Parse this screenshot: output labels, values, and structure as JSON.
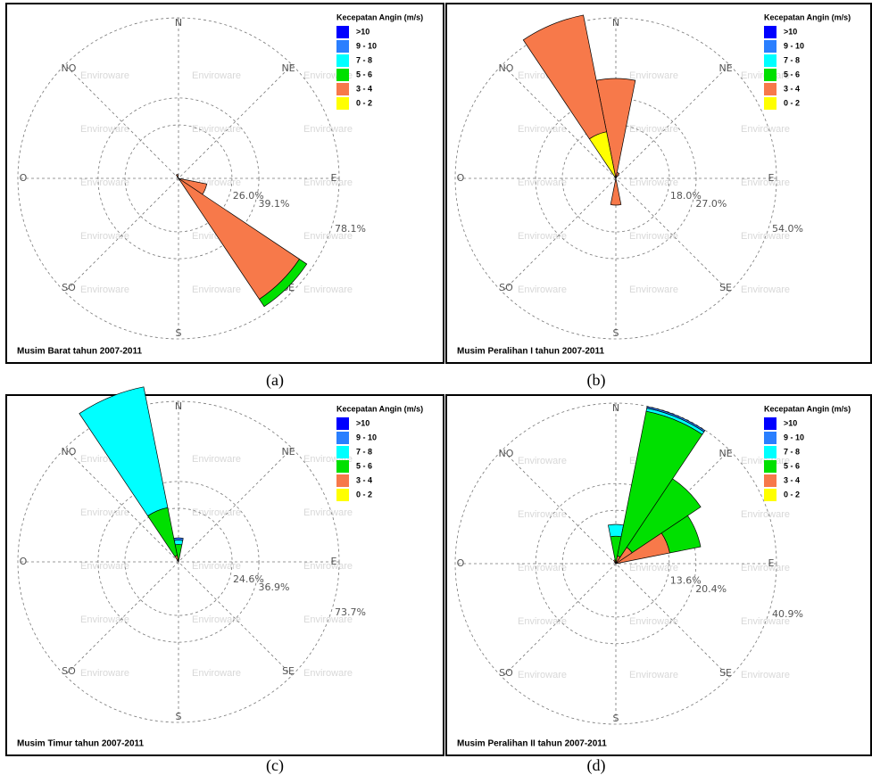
{
  "chart_data": [
    {
      "type": "windrose",
      "title": "Musim Barat tahun 2007-2011",
      "caption": "(a)",
      "legend_title": "Kecepatan Angin (m/s)",
      "watermark": "Enviroware",
      "categories": [
        "N",
        null,
        "NE",
        null,
        "E",
        null,
        "SE",
        null,
        "S",
        null,
        "SO",
        null,
        "O",
        null,
        "NO",
        null
      ],
      "rlim": [
        0,
        78.1
      ],
      "rticks": [
        {
          "value": 26.0,
          "label": "26.0%"
        },
        {
          "value": 39.1,
          "label": "39.1%"
        },
        {
          "value": 78.1,
          "label": "78.1%"
        }
      ],
      "series": [
        {
          "name": ">10",
          "color": "#0000ff",
          "values": [
            0,
            0,
            0,
            0,
            0,
            0,
            0,
            0,
            0,
            0,
            0,
            0,
            0,
            0,
            0,
            0
          ]
        },
        {
          "name": "9 - 10",
          "color": "#2a7fff",
          "values": [
            0,
            0,
            0,
            0,
            0,
            0,
            0,
            0,
            0,
            0,
            0,
            0,
            0,
            0,
            0,
            0
          ]
        },
        {
          "name": "7 - 8",
          "color": "#00ffff",
          "values": [
            0,
            0,
            0,
            0,
            0,
            0,
            0,
            0,
            0,
            0,
            0,
            0,
            0,
            0,
            0,
            0
          ]
        },
        {
          "name": "5 - 6",
          "color": "#00e000",
          "values": [
            0,
            0,
            0,
            0,
            0,
            0,
            4.3,
            0,
            0,
            0,
            0,
            0,
            0,
            0,
            0,
            0
          ]
        },
        {
          "name": "3 - 4",
          "color": "#f7794a",
          "values": [
            0,
            0,
            0,
            0,
            0,
            14,
            70.7,
            0,
            0,
            0,
            0,
            0,
            0,
            0,
            0,
            2
          ]
        },
        {
          "name": "0 - 2",
          "color": "#ffff00",
          "values": [
            0,
            0,
            0,
            0,
            0,
            0,
            0,
            0,
            0,
            0,
            0,
            0,
            0,
            0,
            0,
            0
          ]
        }
      ]
    },
    {
      "type": "windrose",
      "title": "Musim Peralihan I tahun 2007-2011",
      "caption": "(b)",
      "legend_title": "Kecepatan Angin (m/s)",
      "watermark": "Enviroware",
      "categories": [
        "N",
        null,
        "NE",
        null,
        "E",
        null,
        "SE",
        null,
        "S",
        null,
        "SO",
        null,
        "O",
        null,
        "NO",
        null
      ],
      "rlim": [
        0,
        54.0
      ],
      "rticks": [
        {
          "value": 18.0,
          "label": "18.0%"
        },
        {
          "value": 27.0,
          "label": "27.0%"
        },
        {
          "value": 54.0,
          "label": "54.0%"
        }
      ],
      "series": [
        {
          "name": ">10",
          "color": "#0000ff",
          "values": [
            0,
            0,
            0,
            0,
            0,
            0,
            0,
            0,
            0,
            0,
            0,
            0,
            0,
            0,
            0,
            0
          ]
        },
        {
          "name": "9 - 10",
          "color": "#2a7fff",
          "values": [
            0,
            0,
            0,
            0,
            0,
            0,
            0,
            0,
            0,
            0,
            0,
            0,
            0,
            0,
            0,
            0
          ]
        },
        {
          "name": "7 - 8",
          "color": "#00ffff",
          "values": [
            0,
            0,
            0,
            0,
            0,
            0,
            0,
            0,
            0,
            0,
            0,
            0,
            0,
            0,
            0,
            0
          ]
        },
        {
          "name": "5 - 6",
          "color": "#00e000",
          "values": [
            0,
            0,
            0,
            0,
            0,
            0,
            0,
            0,
            0,
            0,
            0,
            0,
            0,
            0,
            0,
            0
          ]
        },
        {
          "name": "3 - 4",
          "color": "#f7794a",
          "values": [
            33.6,
            2,
            0,
            0,
            0,
            0,
            0,
            0,
            9,
            0,
            0,
            0,
            0,
            0,
            0,
            40
          ]
        },
        {
          "name": "0 - 2",
          "color": "#ffff00",
          "values": [
            0,
            0,
            0,
            0,
            0,
            0,
            0,
            0,
            0,
            0,
            0,
            0,
            0,
            0,
            0,
            16
          ]
        }
      ]
    },
    {
      "type": "windrose",
      "title": "Musim Timur tahun 2007-2011",
      "caption": "(c)",
      "legend_title": "Kecepatan Angin (m/s)",
      "watermark": "Enviroware",
      "categories": [
        "N",
        null,
        "NE",
        null,
        "E",
        null,
        "SE",
        null,
        "S",
        null,
        "SO",
        null,
        "O",
        null,
        "NO",
        null
      ],
      "rlim": [
        0,
        73.7
      ],
      "rticks": [
        {
          "value": 24.6,
          "label": "24.6%"
        },
        {
          "value": 36.9,
          "label": "36.9%"
        },
        {
          "value": 73.7,
          "label": "73.7%"
        }
      ],
      "series": [
        {
          "name": ">10",
          "color": "#0000ff",
          "values": [
            0,
            0,
            0,
            0,
            0,
            0,
            0,
            0,
            0,
            0,
            0,
            0,
            0,
            0,
            0,
            0
          ]
        },
        {
          "name": "9 - 10",
          "color": "#2a7fff",
          "values": [
            1,
            0,
            0,
            0,
            0,
            0,
            0,
            0,
            0,
            0,
            0,
            0,
            0,
            0,
            0,
            0
          ]
        },
        {
          "name": "7 - 8",
          "color": "#00ffff",
          "values": [
            2,
            0,
            0,
            0,
            0,
            0,
            0,
            0,
            0,
            0,
            0,
            0,
            0,
            0,
            0,
            56.5
          ]
        },
        {
          "name": "5 - 6",
          "color": "#00e000",
          "values": [
            8,
            0,
            0,
            0,
            0,
            0,
            0,
            0,
            0,
            0,
            0,
            0,
            0,
            0,
            0,
            22.4
          ]
        },
        {
          "name": "3 - 4",
          "color": "#f7794a",
          "values": [
            0,
            0,
            0,
            0,
            0,
            0,
            0,
            0,
            0,
            0,
            0,
            0,
            0,
            0,
            0,
            3
          ]
        },
        {
          "name": "0 - 2",
          "color": "#ffff00",
          "values": [
            0,
            0,
            0,
            0,
            0,
            0,
            0,
            0,
            0,
            0,
            0,
            0,
            0,
            0,
            0,
            0
          ]
        }
      ]
    },
    {
      "type": "windrose",
      "title": "Musim Peralihan II tahun 2007-2011",
      "caption": "(d)",
      "legend_title": "Kecepatan Angin (m/s)",
      "watermark": "Enviroware",
      "categories": [
        "N",
        null,
        "NE",
        null,
        "E",
        null,
        "SE",
        null,
        "S",
        null,
        "SO",
        null,
        "O",
        null,
        "NO",
        null
      ],
      "rlim": [
        0,
        40.9
      ],
      "rticks": [
        {
          "value": 13.6,
          "label": "13.6%"
        },
        {
          "value": 20.4,
          "label": "20.4%"
        },
        {
          "value": 40.9,
          "label": "40.9%"
        }
      ],
      "series": [
        {
          "name": ">10",
          "color": "#0000ff",
          "values": [
            0,
            0,
            0,
            0,
            0,
            0,
            0,
            0,
            0,
            0,
            0,
            0,
            0,
            0,
            0,
            0
          ]
        },
        {
          "name": "9 - 10",
          "color": "#2a7fff",
          "values": [
            0,
            0.4,
            0,
            0,
            0,
            0,
            0,
            0,
            0,
            0,
            0,
            0,
            0,
            0,
            0,
            0
          ]
        },
        {
          "name": "7 - 8",
          "color": "#00ffff",
          "values": [
            3,
            0.8,
            0,
            0,
            0,
            0,
            0,
            0,
            0,
            0,
            0,
            0,
            0,
            0,
            0,
            0
          ]
        },
        {
          "name": "5 - 6",
          "color": "#00e000",
          "values": [
            7,
            37.6,
            21,
            8,
            0,
            0,
            0,
            0,
            0,
            0,
            0,
            0,
            0,
            0,
            0,
            0
          ]
        },
        {
          "name": "3 - 4",
          "color": "#f7794a",
          "values": [
            0,
            2,
            5,
            14,
            0,
            0,
            0,
            0,
            0,
            0,
            0,
            0,
            0,
            0,
            0,
            1
          ]
        },
        {
          "name": "0 - 2",
          "color": "#ffff00",
          "values": [
            0,
            0,
            0,
            0,
            0,
            0,
            0,
            0,
            0,
            0,
            0,
            0,
            0,
            0,
            0,
            0
          ]
        }
      ]
    }
  ]
}
